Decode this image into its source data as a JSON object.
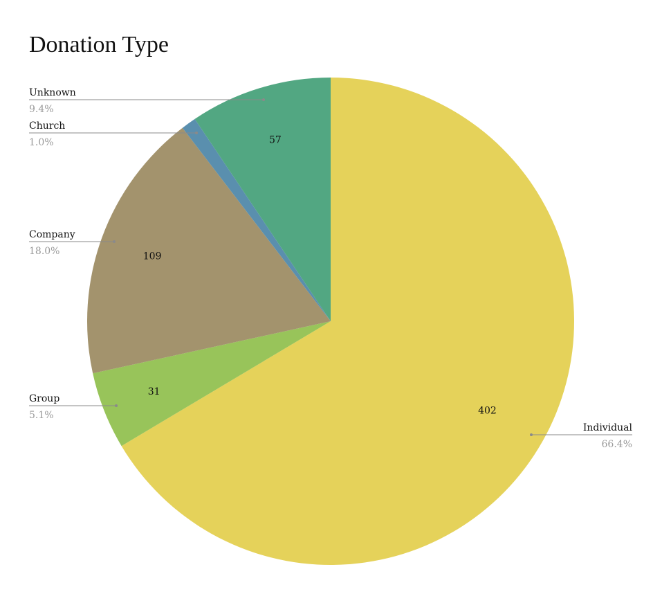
{
  "chart_data": {
    "type": "pie",
    "title": "Donation Type",
    "start_angle_deg": 0,
    "direction": "clockwise",
    "slices": [
      {
        "label": "Individual",
        "value": 402,
        "percent": "66.4%",
        "color": "#E5D25A"
      },
      {
        "label": "Group",
        "value": 31,
        "percent": "5.1%",
        "color": "#98C45A"
      },
      {
        "label": "Company",
        "value": 109,
        "percent": "18.0%",
        "color": "#A3936D"
      },
      {
        "label": "Church",
        "value": 6,
        "percent": "1.0%",
        "color": "#5A8FAE"
      },
      {
        "label": "Unknown",
        "value": 57,
        "percent": "9.4%",
        "color": "#52A782"
      }
    ],
    "value_labels": [
      "402",
      "31",
      "109",
      "",
      "57"
    ]
  }
}
